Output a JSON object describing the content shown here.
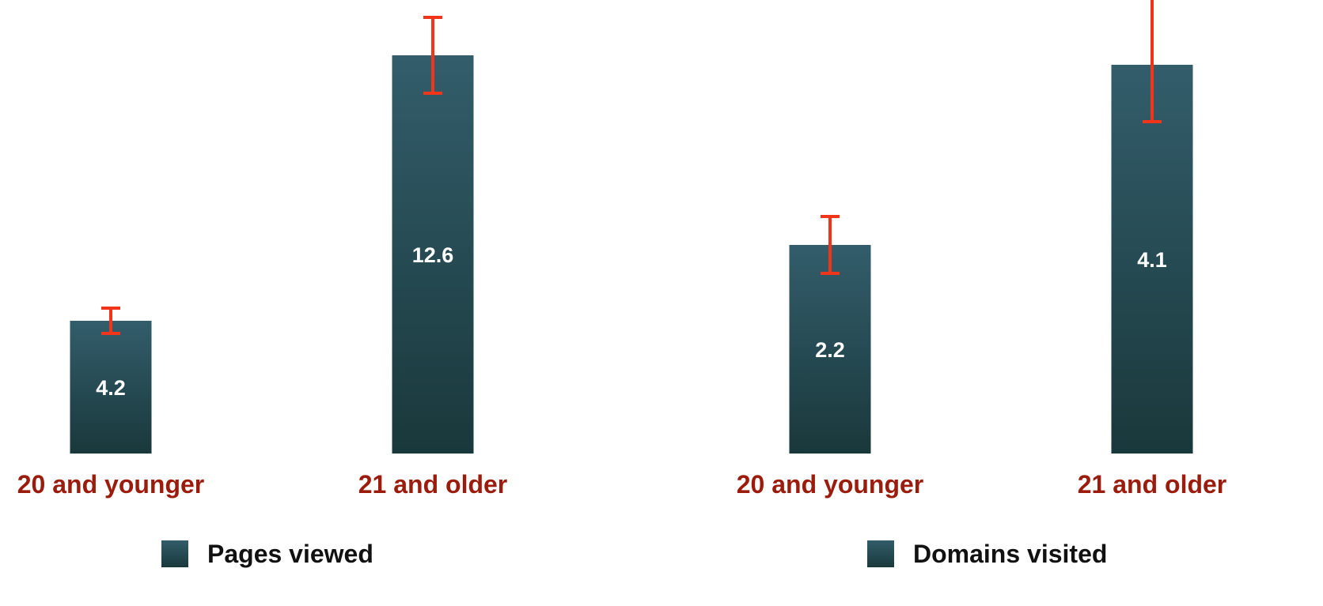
{
  "colors": {
    "bar_top": "#335d6b",
    "bar_bottom": "#19383b",
    "error_bar": "#f0351a",
    "category_label": "#9b1c0c",
    "value_label": "#ffffff",
    "legend_text": "#111111"
  },
  "chart_data": [
    {
      "type": "bar",
      "categories": [
        "20 and younger",
        "21 and older"
      ],
      "series": [
        {
          "name": "Pages viewed",
          "values": [
            4.2,
            12.6
          ],
          "error_low": [
            3.8,
            11.4
          ],
          "error_high": [
            4.6,
            13.8
          ]
        }
      ],
      "data_labels": [
        "4.2",
        "12.6"
      ],
      "ylim": [
        0,
        14.1
      ],
      "grid": false,
      "legend": "bottom"
    },
    {
      "type": "bar",
      "categories": [
        "20 and younger",
        "21 and older"
      ],
      "series": [
        {
          "name": "Domains visited",
          "values": [
            2.2,
            4.1
          ],
          "error_low": [
            1.9,
            3.5
          ],
          "error_high": [
            2.5,
            5.3
          ]
        }
      ],
      "data_labels": [
        "2.2",
        "4.1"
      ],
      "ylim": [
        0,
        4.7
      ],
      "grid": false,
      "legend": "bottom"
    }
  ]
}
